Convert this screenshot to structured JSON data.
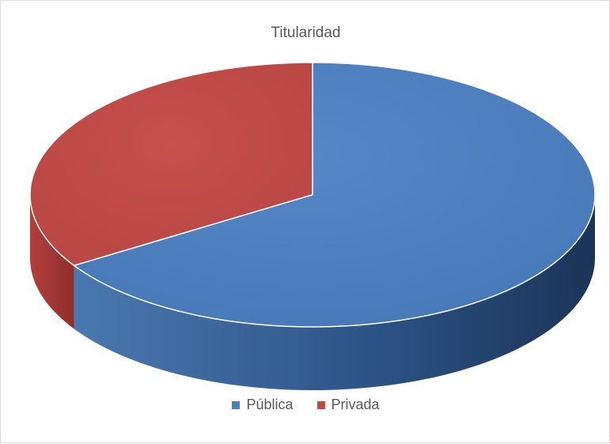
{
  "chart_data": {
    "type": "pie",
    "title": "Titularidad",
    "categories": [
      "Pública",
      "Privada"
    ],
    "values": [
      66,
      34
    ],
    "colors": [
      "#4a7ebb",
      "#be4b48"
    ],
    "legend_position": "bottom",
    "style": "3d"
  }
}
